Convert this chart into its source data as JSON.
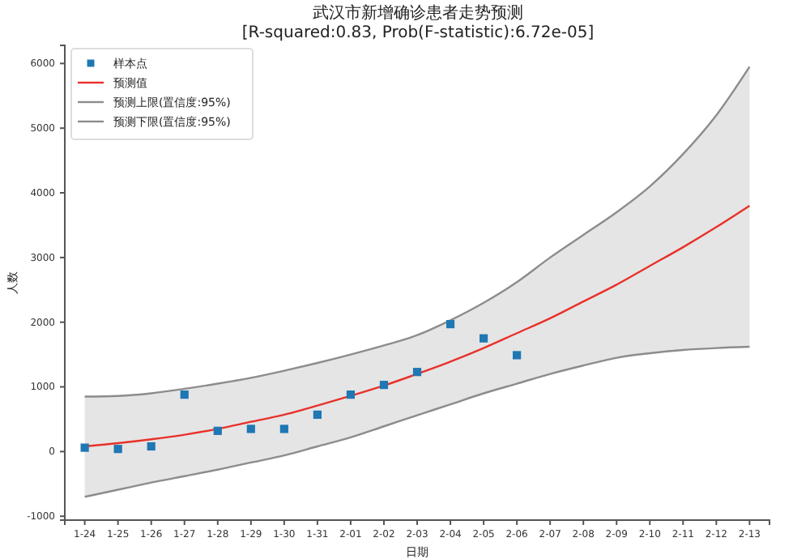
{
  "chart_data": {
    "type": "line",
    "title": "武汉市新增确诊患者走势预测",
    "subtitle": "[R-squared:0.83, Prob(F-statistic):6.72e-05]",
    "xlabel": "日期",
    "ylabel": "人数",
    "categories": [
      "1-24",
      "1-25",
      "1-26",
      "1-27",
      "1-28",
      "1-29",
      "1-30",
      "1-31",
      "2-01",
      "2-02",
      "2-03",
      "2-04",
      "2-05",
      "2-06",
      "2-07",
      "2-08",
      "2-09",
      "2-10",
      "2-11",
      "2-12",
      "2-13"
    ],
    "series": [
      {
        "name": "样本点",
        "type": "scatter",
        "marker": "square",
        "color": "#1f77b4",
        "values": [
          60,
          40,
          80,
          880,
          320,
          350,
          350,
          570,
          880,
          1030,
          1230,
          1970,
          1750,
          1490,
          null,
          null,
          null,
          null,
          null,
          null,
          null
        ]
      },
      {
        "name": "预测值",
        "color": "#e8312a",
        "values": [
          80,
          130,
          190,
          260,
          350,
          460,
          570,
          710,
          860,
          1020,
          1200,
          1390,
          1600,
          1830,
          2060,
          2320,
          2580,
          2870,
          3160,
          3470,
          3800
        ],
        "lower": [
          -700,
          -590,
          -480,
          -380,
          -280,
          -170,
          -60,
          80,
          220,
          390,
          560,
          730,
          900,
          1050,
          1200,
          1330,
          1450,
          1520,
          1570,
          1600,
          1620
        ],
        "upper": [
          850,
          860,
          900,
          970,
          1050,
          1140,
          1250,
          1370,
          1500,
          1640,
          1800,
          2030,
          2300,
          2620,
          3000,
          3350,
          3700,
          4100,
          4600,
          5200,
          5950
        ]
      },
      {
        "name": "预测上限(置信度:95%)",
        "color": "#8c8c8c",
        "values": [
          850,
          860,
          900,
          970,
          1050,
          1140,
          1250,
          1370,
          1500,
          1640,
          1800,
          2030,
          2300,
          2620,
          3000,
          3350,
          3700,
          4100,
          4600,
          5200,
          5950
        ]
      },
      {
        "name": "预测下限(置信度:95%)",
        "color": "#8c8c8c",
        "values": [
          -700,
          -590,
          -480,
          -380,
          -280,
          -170,
          -60,
          80,
          220,
          390,
          560,
          730,
          900,
          1050,
          1200,
          1330,
          1450,
          1520,
          1570,
          1600,
          1620
        ]
      }
    ],
    "ylim": [
      -1060,
      6280
    ],
    "yticks": [
      -1000,
      0,
      1000,
      2000,
      3000,
      4000,
      5000,
      6000
    ],
    "legend": "top left",
    "grid": false
  }
}
